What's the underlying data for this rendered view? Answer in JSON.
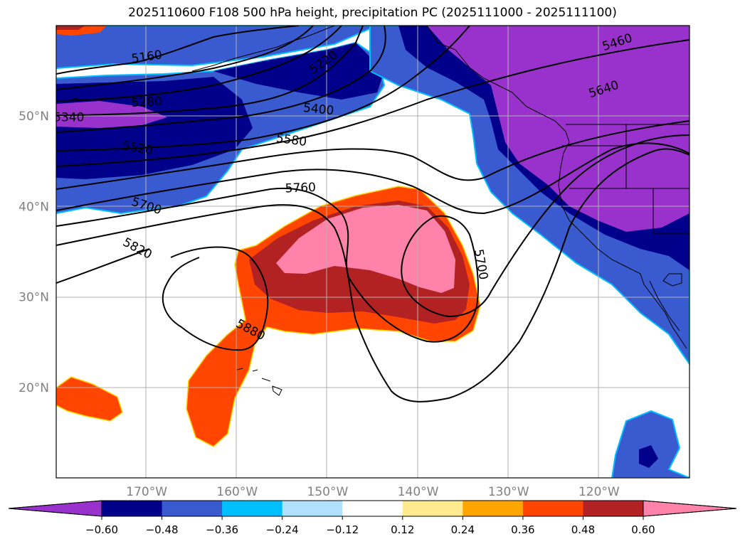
{
  "title": "2025110600 F108 500 hPa height, precipitation PC (2025111000 - 2025111100)",
  "map": {
    "projection": "lat-lon",
    "lon_range": [
      -180,
      -110
    ],
    "lat_range": [
      10,
      60
    ],
    "gridlines": true
  },
  "axes": {
    "lat_ticks": [
      {
        "value": 20,
        "label": "20°N"
      },
      {
        "value": 30,
        "label": "30°N"
      },
      {
        "value": 40,
        "label": "40°N"
      },
      {
        "value": 50,
        "label": "50°N"
      }
    ],
    "lon_ticks": [
      {
        "value": -170,
        "label": "170°W"
      },
      {
        "value": -160,
        "label": "160°W"
      },
      {
        "value": -150,
        "label": "150°W"
      },
      {
        "value": -140,
        "label": "140°W"
      },
      {
        "value": -130,
        "label": "130°W"
      },
      {
        "value": -120,
        "label": "120°W"
      }
    ]
  },
  "height_contour_labels": [
    {
      "text": "5160",
      "lon": -170.0,
      "lat": 56.6,
      "angle": -8
    },
    {
      "text": "5220",
      "lon": -150.5,
      "lat": 56.0,
      "angle": -35
    },
    {
      "text": "5280",
      "lon": -170.0,
      "lat": 51.6,
      "angle": -3
    },
    {
      "text": "5340",
      "lon": -178.6,
      "lat": 49.9,
      "angle": 0
    },
    {
      "text": "5400",
      "lon": -151.0,
      "lat": 50.8,
      "angle": 6
    },
    {
      "text": "5460",
      "lon": -118.0,
      "lat": 58.2,
      "angle": -18
    },
    {
      "text": "5520",
      "lon": -171.0,
      "lat": 46.5,
      "angle": 10
    },
    {
      "text": "5580",
      "lon": -154.0,
      "lat": 47.4,
      "angle": 8
    },
    {
      "text": "5640",
      "lon": -119.5,
      "lat": 53.0,
      "angle": -18
    },
    {
      "text": "5700",
      "lon": -170.0,
      "lat": 40.1,
      "angle": 18
    },
    {
      "text": "5760",
      "lon": -153.0,
      "lat": 42.1,
      "angle": -2
    },
    {
      "text": "5700",
      "lon": -133.0,
      "lat": 33.6,
      "angle": 80
    },
    {
      "text": "5820",
      "lon": -171.0,
      "lat": 35.4,
      "angle": 28
    },
    {
      "text": "5880",
      "lon": -158.5,
      "lat": 26.4,
      "angle": 28
    }
  ],
  "colorbar": {
    "ticks": [
      "−0.60",
      "−0.48",
      "−0.36",
      "−0.24",
      "−0.12",
      "0.12",
      "0.24",
      "0.36",
      "0.48",
      "0.60"
    ],
    "colors": [
      "#9932cc",
      "#00008b",
      "#3a5bd0",
      "#00bfff",
      "#b0e2ff",
      "#ffffff",
      "#ffea8f",
      "#ffa500",
      "#ff4500",
      "#b22222",
      "#ff82ab"
    ],
    "extend": "both"
  }
}
